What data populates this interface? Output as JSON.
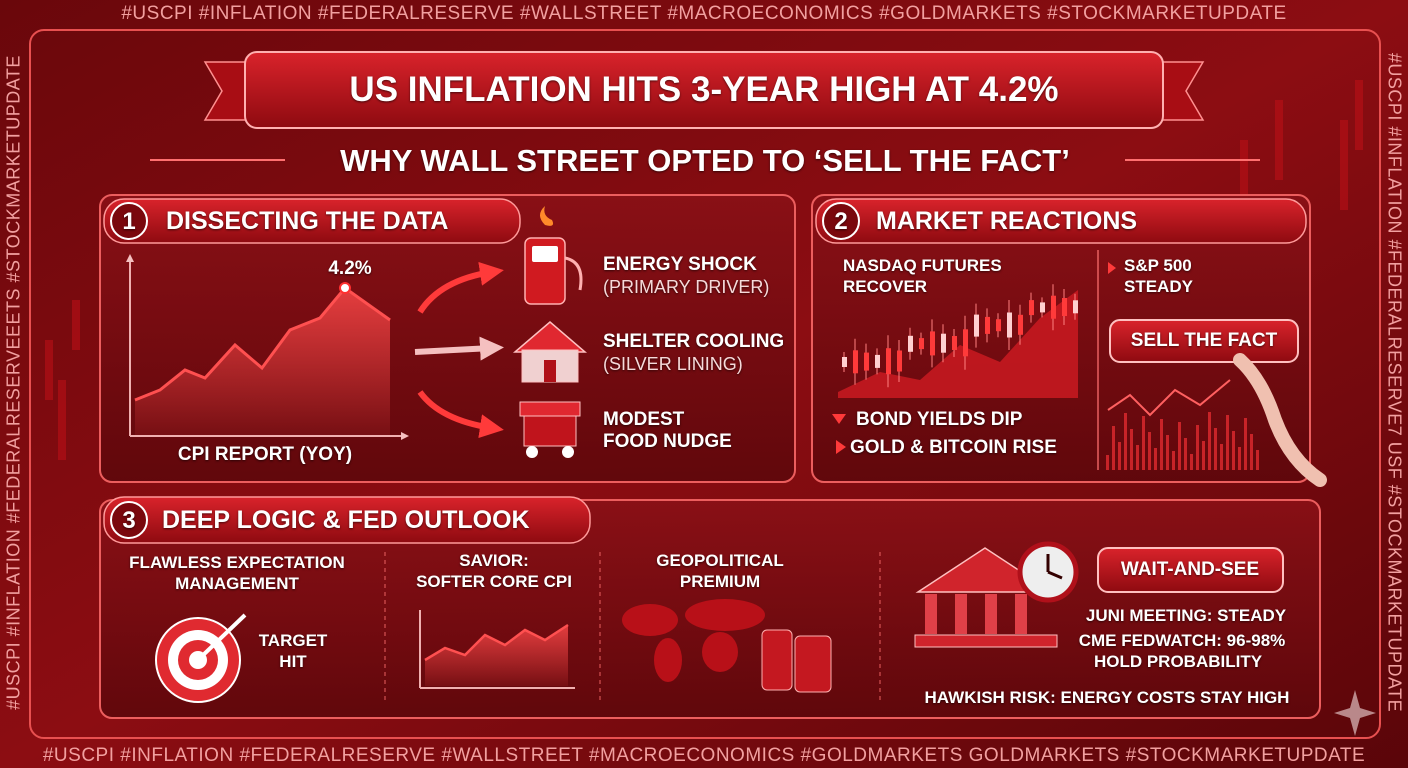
{
  "hashtags": {
    "top": "#USCPI #INFLATION #FEDERALRESERVE #WALLSTREET #MACROECONOMICS #GOLDMARKETS #STOCKMARKETUPDATE",
    "bottom": "#USCPI #INFLATION #FEDERALRESERVE #WALLSTREET #MACROECONOMICS #GOLDMARKETS GOLDMARKETS #STOCKMARKETUPDATE",
    "left": "#USCPI #INFLATION #FEDERALRESERVEEETS #STOCKMARKETUPDATE",
    "right": "#USCPI #INFLATION #FEDERALRESERVE7 USF #STOCKMARKETUPDATE"
  },
  "header": {
    "title": "US INFLATION HITS 3-YEAR HIGH AT 4.2%",
    "subtitle": "WHY WALL STREET OPTED TO ‘SELL THE FACT’"
  },
  "sections": [
    {
      "number": "1",
      "title": "DISSECTING THE DATA",
      "peak_label": "4.2%",
      "caption": "CPI REPORT (YOY)",
      "drivers": [
        {
          "lines": [
            "ENERGY SHOCK",
            "(PRIMARY DRIVER)"
          ]
        },
        {
          "lines": [
            "SHELTER COOLING",
            "(SILVER LINING)"
          ]
        },
        {
          "lines": [
            "MODEST",
            "FOOD NUDGE"
          ]
        }
      ]
    },
    {
      "number": "2",
      "title": "MARKET REACTIONS",
      "nasdaq": [
        "NASDAQ FUTURES",
        "RECOVER"
      ],
      "sp500": [
        "S&P 500",
        "STEADY"
      ],
      "button": "SELL THE FACT",
      "bullets": [
        "BOND YIELDS DIP",
        "GOLD & BITCOIN RISE"
      ]
    },
    {
      "number": "3",
      "title": "DEEP LOGIC & FED OUTLOOK",
      "columns": [
        {
          "lines": [
            "FLAWLESS EXPECTATION",
            "MANAGEMENT"
          ],
          "badge": [
            "TARGET",
            "HIT"
          ]
        },
        {
          "lines": [
            "SAVIOR:",
            "SOFTER CORE CPI"
          ]
        },
        {
          "lines": [
            "GEOPOLITICAL",
            "PREMIUM"
          ]
        }
      ],
      "button": "WAIT-AND-SEE",
      "notes": [
        "JUNI MEETING: STEADY",
        "CME FEDWATCH: 96-98%",
        "HOLD PROBABILITY"
      ],
      "risk": "HAWKISH RISK: ENERGY COSTS STAY HIGH"
    }
  ]
}
